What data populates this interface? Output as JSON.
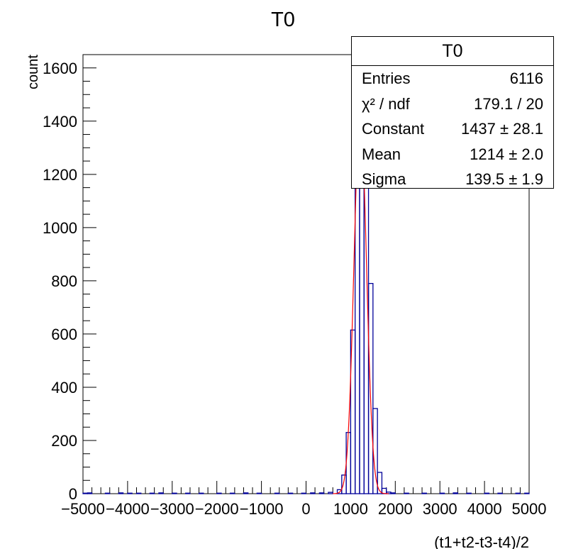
{
  "chart_data": {
    "type": "histogram",
    "title": "T0",
    "xlabel": "(t1+t2-t3-t4)/2",
    "ylabel": "count",
    "xlim": [
      -5000,
      5000
    ],
    "ylim": [
      0,
      1650
    ],
    "x_ticks": [
      -5000,
      -4000,
      -3000,
      -2000,
      -1000,
      0,
      1000,
      2000,
      3000,
      4000,
      5000
    ],
    "x_tick_labels": [
      "−5000",
      "−4000",
      "−3000",
      "−2000",
      "−1000",
      "0",
      "1000",
      "2000",
      "3000",
      "4000",
      "5000"
    ],
    "y_ticks": [
      0,
      200,
      400,
      600,
      800,
      1000,
      1200,
      1400,
      1600
    ],
    "y_tick_labels": [
      "0",
      "200",
      "400",
      "600",
      "800",
      "1000",
      "1200",
      "1400",
      "1600"
    ],
    "bin_width": 100,
    "bins": [
      {
        "x": -5000,
        "count": 2
      },
      {
        "x": -4900,
        "count": 3
      },
      {
        "x": -4500,
        "count": 2
      },
      {
        "x": -4200,
        "count": 3
      },
      {
        "x": -4000,
        "count": 2
      },
      {
        "x": -3800,
        "count": 2
      },
      {
        "x": -3500,
        "count": 2
      },
      {
        "x": -3300,
        "count": 3
      },
      {
        "x": -3000,
        "count": 2
      },
      {
        "x": -2700,
        "count": 2
      },
      {
        "x": -2400,
        "count": 2
      },
      {
        "x": -2000,
        "count": 2
      },
      {
        "x": -1700,
        "count": 2
      },
      {
        "x": -1400,
        "count": 3
      },
      {
        "x": -1100,
        "count": 2
      },
      {
        "x": -700,
        "count": 2
      },
      {
        "x": -400,
        "count": 2
      },
      {
        "x": -100,
        "count": 2
      },
      {
        "x": 100,
        "count": 3
      },
      {
        "x": 300,
        "count": 3
      },
      {
        "x": 500,
        "count": 5
      },
      {
        "x": 700,
        "count": 15
      },
      {
        "x": 800,
        "count": 70
      },
      {
        "x": 900,
        "count": 230
      },
      {
        "x": 1000,
        "count": 615
      },
      {
        "x": 1100,
        "count": 1150
      },
      {
        "x": 1200,
        "count": 1480
      },
      {
        "x": 1300,
        "count": 1260
      },
      {
        "x": 1400,
        "count": 790
      },
      {
        "x": 1500,
        "count": 320
      },
      {
        "x": 1600,
        "count": 80
      },
      {
        "x": 1700,
        "count": 20
      },
      {
        "x": 1800,
        "count": 6
      },
      {
        "x": 1900,
        "count": 3
      },
      {
        "x": 2200,
        "count": 2
      },
      {
        "x": 2600,
        "count": 2
      },
      {
        "x": 3000,
        "count": 2
      },
      {
        "x": 3300,
        "count": 3
      },
      {
        "x": 3600,
        "count": 2
      },
      {
        "x": 4000,
        "count": 2
      },
      {
        "x": 4300,
        "count": 2
      },
      {
        "x": 4700,
        "count": 2
      },
      {
        "x": 4900,
        "count": 2
      }
    ],
    "fit": {
      "function": "gaus",
      "constant": 1437,
      "mean": 1214,
      "sigma": 139.5,
      "color": "#ff0000"
    },
    "histogram_color": "#000099",
    "grid": false,
    "legend": "none"
  },
  "stats": {
    "title": "T0",
    "rows": [
      {
        "label": "Entries",
        "value": "6116"
      },
      {
        "label": "χ² / ndf",
        "value": "179.1 / 20"
      },
      {
        "label": "Constant",
        "value": "1437 ± 28.1"
      },
      {
        "label": "Mean",
        "value": "1214 ± 2.0"
      },
      {
        "label": "Sigma",
        "value": "139.5 ± 1.9"
      }
    ]
  }
}
